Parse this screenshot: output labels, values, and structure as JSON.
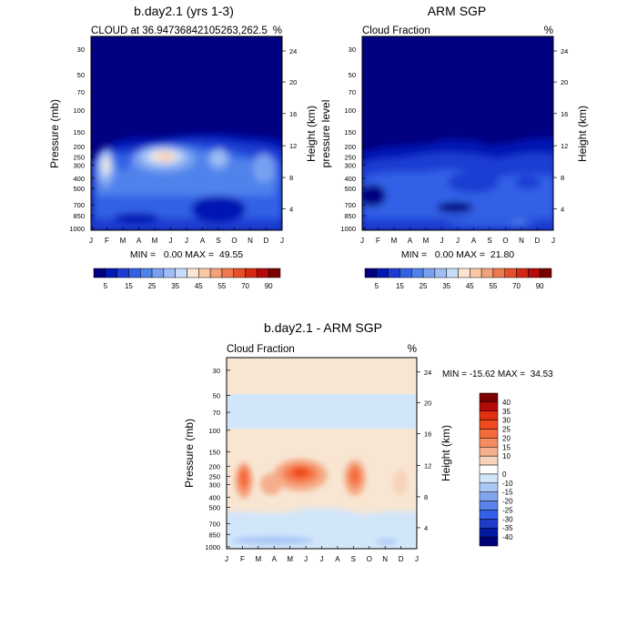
{
  "chart_data": [
    {
      "type": "heatmap",
      "title": "b.day2.1 (yrs 1-3)",
      "subtitle_left": "CLOUD at 36.94736842105263,262.5",
      "subtitle_right": "%",
      "ylabel": "Pressure (mb)",
      "ylabel_right": "Height (km)",
      "x_ticks": [
        "J",
        "F",
        "M",
        "A",
        "M",
        "J",
        "J",
        "A",
        "S",
        "O",
        "N",
        "D",
        "J"
      ],
      "y_ticks": [
        "30",
        "50",
        "70",
        "100",
        "150",
        "200",
        "250",
        "300",
        "400",
        "500",
        "700",
        "850",
        "1000"
      ],
      "y_ticks_right": [
        "24",
        "20",
        "16",
        "12",
        "8",
        "4"
      ],
      "stats": "MIN =   0.00 MAX =  49.55",
      "colorbar": {
        "orientation": "horizontal",
        "labels": [
          "5",
          "15",
          "25",
          "35",
          "45",
          "55",
          "70",
          "90"
        ],
        "colors": [
          "#000080",
          "#0019B4",
          "#1E3CD2",
          "#3261E6",
          "#5082EB",
          "#78A0F0",
          "#A0BEF5",
          "#C8DCFA",
          "#FAE6D2",
          "#FAC8A5",
          "#F5A078",
          "#F07850",
          "#E65028",
          "#D22814",
          "#B40A0A",
          "#7D0000"
        ]
      }
    },
    {
      "type": "heatmap",
      "title": "ARM SGP",
      "subtitle_left": "Cloud Fraction",
      "subtitle_right": "%",
      "ylabel": "pressure level",
      "ylabel_right": "Height (km)",
      "x_ticks": [
        "J",
        "F",
        "M",
        "A",
        "M",
        "J",
        "J",
        "A",
        "S",
        "O",
        "N",
        "D",
        "J"
      ],
      "y_ticks": [
        "30",
        "50",
        "70",
        "100",
        "150",
        "200",
        "250",
        "300",
        "400",
        "500",
        "700",
        "850",
        "1000"
      ],
      "y_ticks_right": [
        "24",
        "20",
        "16",
        "12",
        "8",
        "4"
      ],
      "stats": "MIN =   0.00 MAX =  21.80",
      "colorbar": {
        "orientation": "horizontal",
        "labels": [
          "5",
          "15",
          "25",
          "35",
          "45",
          "55",
          "70",
          "90"
        ],
        "colors": [
          "#000080",
          "#0019B4",
          "#1E3CD2",
          "#3261E6",
          "#5082EB",
          "#78A0F0",
          "#A0BEF5",
          "#C8DCFA",
          "#FAE6D2",
          "#FAC8A5",
          "#F5A078",
          "#F07850",
          "#E65028",
          "#D22814",
          "#B40A0A",
          "#7D0000"
        ]
      }
    },
    {
      "type": "heatmap",
      "title": "b.day2.1 - ARM SGP",
      "subtitle_left": "Cloud Fraction",
      "subtitle_right": "%",
      "ylabel": "Pressure (mb)",
      "ylabel_right": "Height (km)",
      "x_ticks": [
        "J",
        "F",
        "M",
        "A",
        "M",
        "J",
        "J",
        "A",
        "S",
        "O",
        "N",
        "D",
        "J"
      ],
      "y_ticks": [
        "30",
        "50",
        "70",
        "100",
        "150",
        "200",
        "250",
        "300",
        "400",
        "500",
        "700",
        "850",
        "1000"
      ],
      "y_ticks_right": [
        "24",
        "20",
        "16",
        "12",
        "8",
        "4"
      ],
      "stats": "MIN = -15.62 MAX =  34.53",
      "colorbar": {
        "orientation": "vertical",
        "labels": [
          "40",
          "35",
          "30",
          "25",
          "20",
          "15",
          "10",
          "0",
          "-10",
          "-15",
          "-20",
          "-25",
          "-30",
          "-35",
          "-40"
        ],
        "colors": [
          "#7D0000",
          "#B40A0A",
          "#E0300E",
          "#F04A1E",
          "#F5693A",
          "#F58C5F",
          "#F5AF8C",
          "#F8D2B9",
          "#FFFFFF",
          "#D2E6FA",
          "#AAC8F5",
          "#82A5F0",
          "#5A82EB",
          "#3260E6",
          "#1E3CC8",
          "#0019A0",
          "#000078"
        ]
      }
    }
  ]
}
